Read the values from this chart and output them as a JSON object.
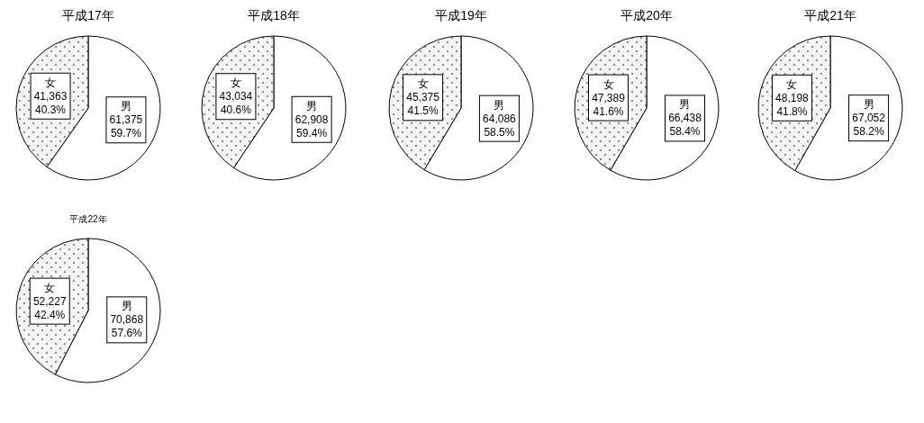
{
  "chart_data": [
    {
      "type": "pie",
      "title": "平成17年",
      "categories": [
        "男",
        "女"
      ],
      "values": [
        61375,
        41363
      ],
      "colors": [
        "#ffffff",
        "#f4f4f4"
      ],
      "value_labels": [
        "61,375\n59.7%",
        "41,363\n40.3%"
      ]
    },
    {
      "type": "pie",
      "title": "平成18年",
      "categories": [
        "男",
        "女"
      ],
      "values": [
        62908,
        43034
      ],
      "colors": [
        "#ffffff",
        "#f4f4f4"
      ],
      "value_labels": [
        "62,908\n59.4%",
        "43,034\n40.6%"
      ]
    },
    {
      "type": "pie",
      "title": "平成19年",
      "categories": [
        "男",
        "女"
      ],
      "values": [
        64086,
        45375
      ],
      "colors": [
        "#ffffff",
        "#f4f4f4"
      ],
      "value_labels": [
        "64,086\n58.5%",
        "45,375\n41.5%"
      ]
    },
    {
      "type": "pie",
      "title": "平成20年",
      "categories": [
        "男",
        "女"
      ],
      "values": [
        66438,
        47389
      ],
      "colors": [
        "#ffffff",
        "#f4f4f4"
      ],
      "value_labels": [
        "66,438\n58.4%",
        "47,389\n41.6%"
      ]
    },
    {
      "type": "pie",
      "title": "平成21年",
      "categories": [
        "男",
        "女"
      ],
      "values": [
        67052,
        48198
      ],
      "colors": [
        "#ffffff",
        "#f4f4f4"
      ],
      "value_labels": [
        "67,052\n58.2%",
        "48,198\n41.8%"
      ]
    },
    {
      "type": "pie",
      "title": "平成22年",
      "categories": [
        "男",
        "女"
      ],
      "values": [
        70868,
        52227
      ],
      "colors": [
        "#ffffff",
        "#f4f4f4"
      ],
      "value_labels": [
        "70,868\n57.6%",
        "52,227\n42.4%"
      ]
    }
  ]
}
